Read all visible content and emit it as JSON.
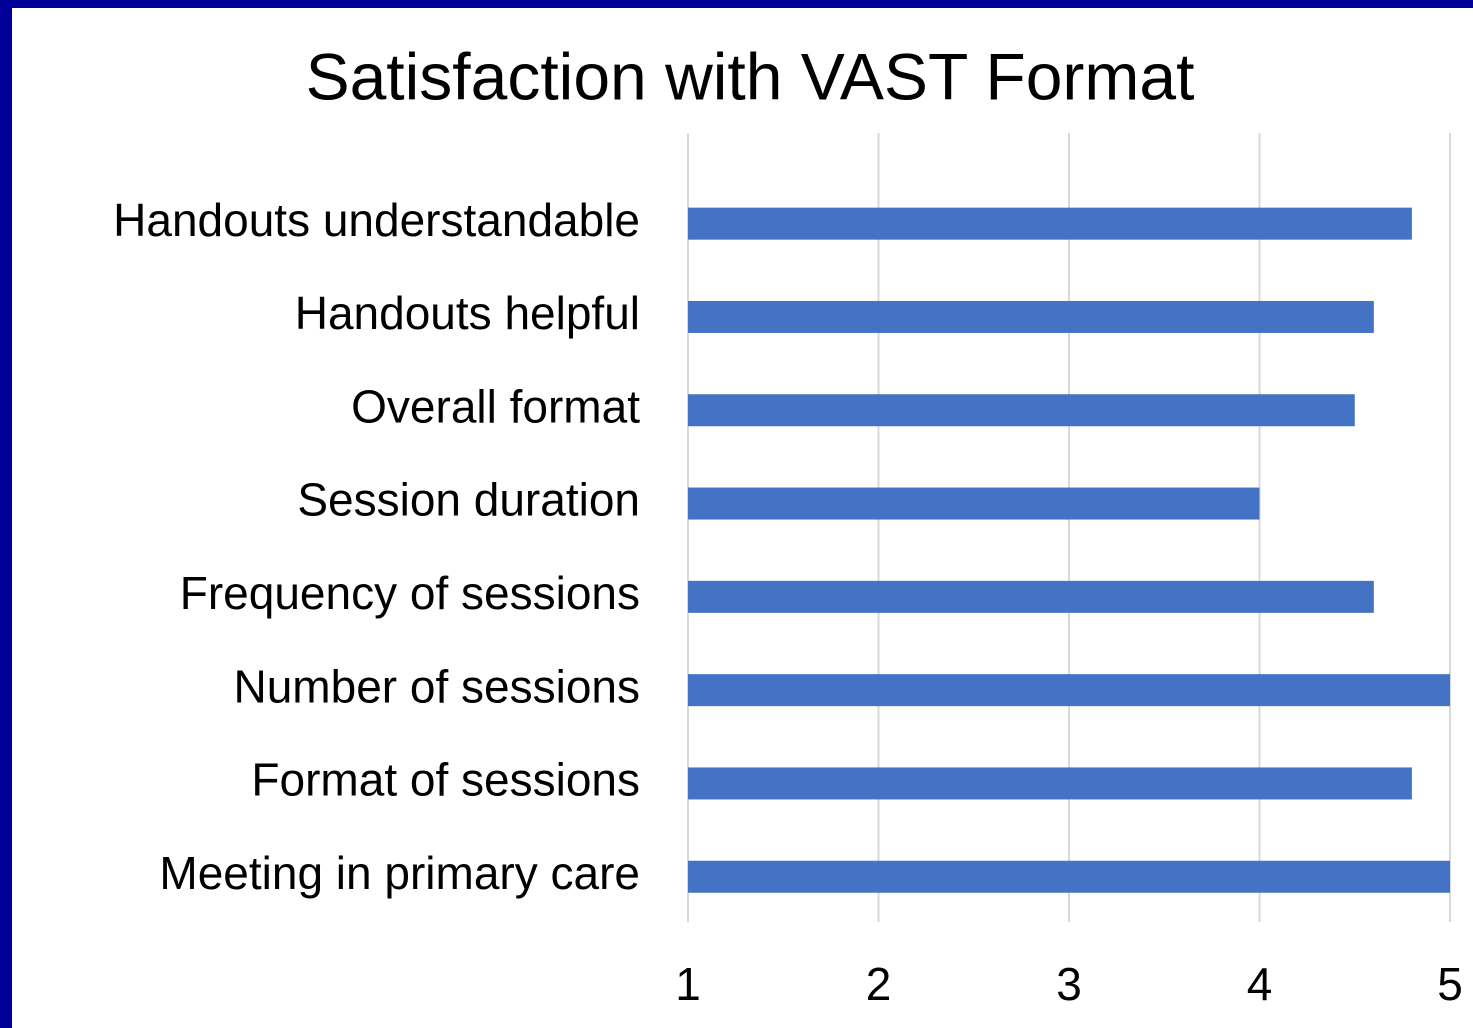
{
  "chart_data": {
    "type": "bar",
    "orientation": "horizontal",
    "title": "Satisfaction with VAST Format",
    "categories": [
      "Handouts understandable",
      "Handouts helpful",
      "Overall format",
      "Session duration",
      "Frequency of sessions",
      "Number of sessions",
      "Format of sessions",
      "Meeting in primary care"
    ],
    "values": [
      4.8,
      4.6,
      4.5,
      4.0,
      4.6,
      5.0,
      4.8,
      5.0
    ],
    "color": "#4472c4",
    "xlim": [
      1,
      5
    ],
    "xticks": [
      1,
      2,
      3,
      4,
      5
    ],
    "grid": true
  }
}
